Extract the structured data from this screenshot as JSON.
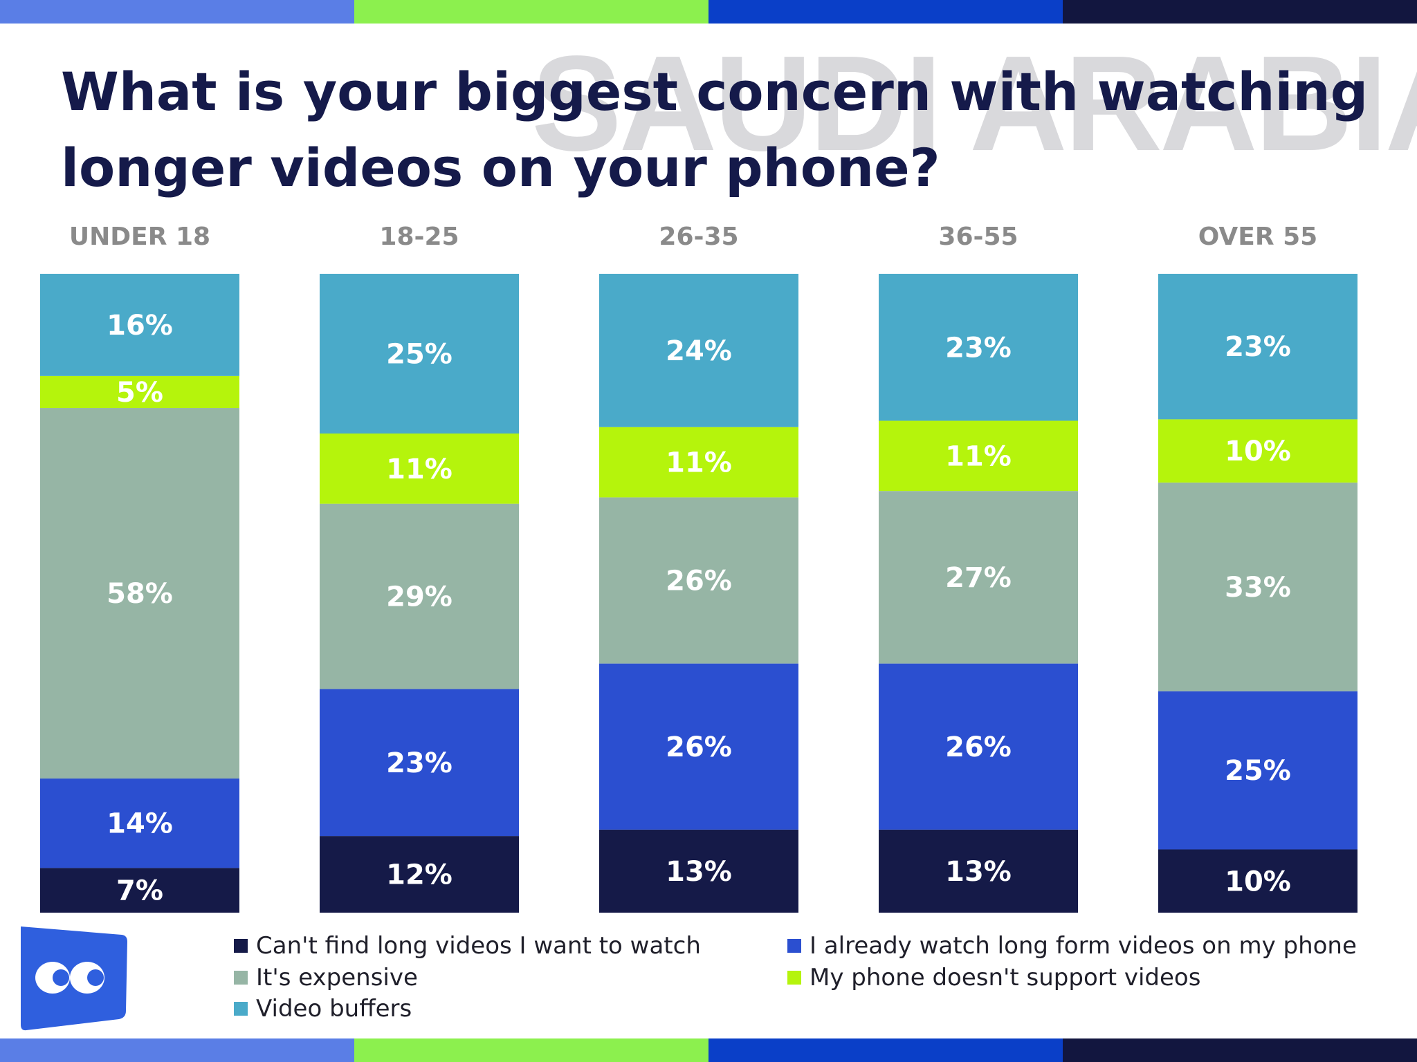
{
  "header": {
    "title": "What is your biggest concern with watching longer videos on your phone?",
    "watermark": "SAUDI ARABIA"
  },
  "colors": {
    "title": "#151a4a",
    "stripes": [
      "#5a7ee6",
      "#8cf04e",
      "#0a3fc8",
      "#12163f"
    ],
    "label_text": "#ffffff",
    "category_text": "#8a8a8a"
  },
  "icons": {
    "logo": "brand-logo-icon"
  },
  "chart_data": {
    "type": "bar",
    "stacked": true,
    "orientation": "vertical",
    "categories": [
      "UNDER 18",
      "18-25",
      "26-35",
      "36-55",
      "OVER 55"
    ],
    "series": [
      {
        "name": "Can't find long videos I want to watch",
        "color": "#151a48",
        "values": [
          7,
          12,
          13,
          13,
          10
        ]
      },
      {
        "name": "I already watch long form videos on my phone",
        "color": "#2b4fd0",
        "values": [
          14,
          23,
          26,
          26,
          25
        ]
      },
      {
        "name": "It's expensive",
        "color": "#96b5a5",
        "values": [
          58,
          29,
          26,
          27,
          33
        ]
      },
      {
        "name": "My phone doesn't support videos",
        "color": "#b5f40c",
        "values": [
          5,
          11,
          11,
          11,
          10
        ]
      },
      {
        "name": "Video buffers",
        "color": "#4aaac9",
        "values": [
          16,
          25,
          24,
          23,
          23
        ]
      }
    ],
    "value_suffix": "%",
    "legend_order": [
      0,
      1,
      2,
      3,
      4
    ]
  }
}
